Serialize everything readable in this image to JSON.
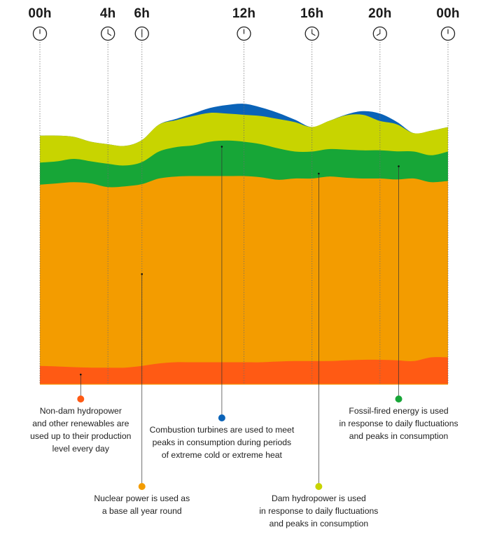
{
  "chart_data": {
    "type": "area",
    "title": "",
    "xlabel": "",
    "ylabel": "",
    "x_unit": "hour of day",
    "x_ticks": [
      {
        "label": "00h",
        "hour": 0,
        "clock_hour": 12,
        "clock_minute": 0
      },
      {
        "label": "4h",
        "hour": 4,
        "clock_hour": 4,
        "clock_minute": 0
      },
      {
        "label": "6h",
        "hour": 6,
        "clock_hour": 6,
        "clock_minute": 0
      },
      {
        "label": "12h",
        "hour": 12,
        "clock_hour": 12,
        "clock_minute": 0
      },
      {
        "label": "16h",
        "hour": 16,
        "clock_hour": 4,
        "clock_minute": 0
      },
      {
        "label": "20h",
        "hour": 20,
        "clock_hour": 8,
        "clock_minute": 0
      },
      {
        "label": "00h",
        "hour": 24,
        "clock_hour": 12,
        "clock_minute": 0
      }
    ],
    "x": [
      0,
      1,
      2,
      3,
      4,
      5,
      6,
      7,
      8,
      9,
      10,
      11,
      12,
      13,
      14,
      15,
      16,
      17,
      18,
      19,
      20,
      21,
      22,
      23,
      24
    ],
    "ylim": [
      0,
      100
    ],
    "stack_order": [
      "non_dam_hydro",
      "nuclear",
      "fossil",
      "dam_hydro",
      "combustion"
    ],
    "series": [
      {
        "key": "non_dam_hydro",
        "name": "Non-dam hydropower and other renewables",
        "color": "#ff5a14",
        "values": [
          7.5,
          7.3,
          7,
          6.8,
          6.8,
          6.8,
          7.5,
          8.5,
          9,
          9,
          9,
          9,
          9,
          9,
          9.3,
          9.5,
          9.5,
          9.5,
          9.8,
          10,
          10,
          9.8,
          9.5,
          11,
          11
        ]
      },
      {
        "key": "nuclear",
        "name": "Nuclear power",
        "color": "#f39c00",
        "values": [
          74,
          74.7,
          75.5,
          75.2,
          73.7,
          74,
          74.2,
          75.5,
          75.8,
          76,
          76,
          76,
          76,
          75.5,
          74.2,
          74.5,
          74.5,
          75.3,
          74.5,
          74,
          74,
          73.8,
          74.5,
          71.5,
          72
        ]
      },
      {
        "key": "fossil",
        "name": "Fossil-fired energy",
        "color": "#17a637",
        "values": [
          9,
          9,
          9.5,
          9,
          9.5,
          8.5,
          9,
          11,
          12,
          12.5,
          14,
          14.5,
          14,
          13.5,
          12.8,
          11,
          11,
          11.2,
          11.5,
          11.5,
          11.5,
          11.5,
          11,
          11,
          12
        ]
      },
      {
        "key": "dam_hydro",
        "name": "Dam hydropower",
        "color": "#c8d400",
        "values": [
          11,
          10.5,
          9,
          8,
          8,
          8,
          9,
          11,
          11,
          12,
          11.8,
          11,
          11,
          11.5,
          12,
          12,
          10,
          11.5,
          14,
          14.5,
          12,
          11,
          7.5,
          10,
          10
        ]
      },
      {
        "key": "combustion",
        "name": "Combustion turbines",
        "color": "#0a63b8",
        "values": [
          0,
          0,
          0,
          0,
          0,
          0,
          0,
          0,
          0.5,
          1,
          2,
          3.5,
          4.5,
          3.5,
          2.5,
          1,
          0,
          0,
          0.3,
          1.5,
          3,
          1,
          0,
          0,
          0
        ]
      }
    ],
    "annotations": [
      {
        "key": "non_dam_hydro",
        "lines": [
          "Non-dam hydropower",
          "and other renewables are",
          "used up to their production",
          "level every day"
        ],
        "hour": 2.4,
        "anchor_value": 4
      },
      {
        "key": "nuclear",
        "lines": [
          "Nuclear power is used as",
          "a base all year round"
        ],
        "hour": 6.0,
        "anchor_value": 45
      },
      {
        "key": "combustion",
        "lines": [
          "Combustion turbines are used to meet",
          "peaks in consumption during periods",
          "of extreme cold or extreme heat"
        ],
        "hour": 10.7,
        "anchor_value": 97
      },
      {
        "key": "dam_hydro",
        "lines": [
          "Dam hydropower is used",
          "in response to daily fluctuations",
          "and peaks in consumption"
        ],
        "hour": 16.4,
        "anchor_value": 86
      },
      {
        "key": "fossil",
        "lines": [
          "Fossil-fired energy is used",
          "in response to daily fluctuations",
          "and peaks in consumption"
        ],
        "hour": 21.1,
        "anchor_value": 89
      }
    ]
  }
}
